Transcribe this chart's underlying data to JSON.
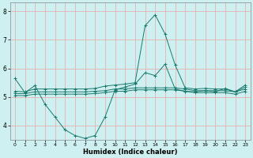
{
  "xlabel": "Humidex (Indice chaleur)",
  "bg_color": "#cff0f0",
  "grid_color": "#e8b0b0",
  "line_color": "#1a7a6e",
  "axis_color": "#888888",
  "xlim": [
    -0.5,
    23.5
  ],
  "ylim": [
    3.5,
    8.3
  ],
  "yticks": [
    4,
    5,
    6,
    7,
    8
  ],
  "xticks": [
    0,
    1,
    2,
    3,
    4,
    5,
    6,
    7,
    8,
    9,
    10,
    11,
    12,
    13,
    14,
    15,
    16,
    17,
    18,
    19,
    20,
    21,
    22,
    23
  ],
  "series": [
    {
      "x": [
        0,
        1,
        2,
        3,
        4,
        5,
        6,
        7,
        8,
        9,
        10,
        11,
        12,
        13,
        14,
        15,
        16,
        17,
        18,
        19,
        20,
        21,
        22,
        23
      ],
      "y": [
        5.65,
        5.15,
        5.4,
        4.75,
        4.3,
        3.85,
        3.65,
        3.55,
        3.65,
        4.3,
        5.25,
        5.35,
        5.45,
        5.85,
        5.75,
        6.15,
        5.28,
        5.2,
        5.18,
        5.22,
        5.18,
        5.3,
        5.18,
        5.42
      ]
    },
    {
      "x": [
        0,
        1,
        2,
        3,
        4,
        5,
        6,
        7,
        8,
        9,
        10,
        11,
        12,
        13,
        14,
        15,
        16,
        17,
        18,
        19,
        20,
        21,
        22,
        23
      ],
      "y": [
        5.2,
        5.18,
        5.28,
        5.28,
        5.28,
        5.28,
        5.28,
        5.28,
        5.3,
        5.38,
        5.42,
        5.45,
        5.5,
        7.5,
        7.88,
        7.2,
        6.12,
        5.32,
        5.28,
        5.3,
        5.28,
        5.28,
        5.18,
        5.35
      ]
    },
    {
      "x": [
        0,
        1,
        2,
        3,
        4,
        5,
        6,
        7,
        8,
        9,
        10,
        11,
        12,
        13,
        14,
        15,
        16,
        17,
        18,
        19,
        20,
        21,
        22,
        23
      ],
      "y": [
        5.12,
        5.12,
        5.18,
        5.18,
        5.18,
        5.18,
        5.18,
        5.18,
        5.2,
        5.22,
        5.28,
        5.28,
        5.32,
        5.32,
        5.32,
        5.32,
        5.32,
        5.28,
        5.22,
        5.22,
        5.22,
        5.22,
        5.18,
        5.28
      ]
    },
    {
      "x": [
        0,
        1,
        2,
        3,
        4,
        5,
        6,
        7,
        8,
        9,
        10,
        11,
        12,
        13,
        14,
        15,
        16,
        17,
        18,
        19,
        20,
        21,
        22,
        23
      ],
      "y": [
        5.05,
        5.05,
        5.1,
        5.1,
        5.1,
        5.1,
        5.1,
        5.1,
        5.12,
        5.15,
        5.2,
        5.2,
        5.25,
        5.25,
        5.25,
        5.25,
        5.25,
        5.2,
        5.15,
        5.15,
        5.15,
        5.15,
        5.1,
        5.2
      ]
    }
  ]
}
